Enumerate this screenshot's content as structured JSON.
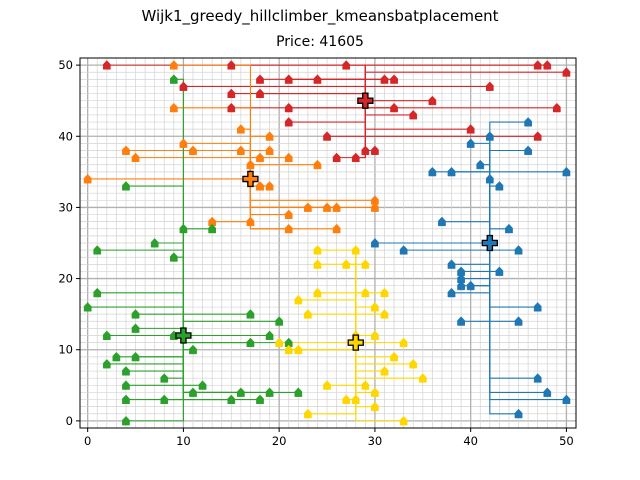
{
  "suptitle": "Wijk1_greedy_hillclimber_kmeansbatplacement",
  "title": "Price: 41605",
  "chart_data": {
    "type": "scatter",
    "title": "Price: 41605",
    "xlabel": "",
    "ylabel": "",
    "xlim": [
      -0.8,
      51
    ],
    "ylim": [
      -1,
      51
    ],
    "xticks": [
      0,
      10,
      20,
      30,
      40,
      50
    ],
    "yticks": [
      0,
      10,
      20,
      30,
      40,
      50
    ],
    "grid": true,
    "series": [
      {
        "color": "#d62728",
        "battery": [
          29,
          45
        ],
        "houses": [
          [
            2,
            50
          ],
          [
            10,
            47
          ],
          [
            15,
            50
          ],
          [
            15,
            46
          ],
          [
            15,
            44
          ],
          [
            18,
            48
          ],
          [
            18,
            46
          ],
          [
            21,
            48
          ],
          [
            21,
            44
          ],
          [
            21,
            42
          ],
          [
            24,
            48
          ],
          [
            27,
            50
          ],
          [
            31,
            48
          ],
          [
            32,
            48
          ],
          [
            32,
            44
          ],
          [
            34,
            43
          ],
          [
            36,
            45
          ],
          [
            42,
            47
          ],
          [
            47,
            50
          ],
          [
            48,
            50
          ],
          [
            50,
            49
          ],
          [
            49,
            44
          ],
          [
            47,
            40
          ],
          [
            40,
            41
          ],
          [
            25,
            40
          ],
          [
            29,
            38
          ],
          [
            30,
            38
          ],
          [
            26,
            37
          ],
          [
            28,
            37
          ]
        ]
      },
      {
        "color": "#1f77b4",
        "battery": [
          42,
          25
        ],
        "houses": [
          [
            30,
            25
          ],
          [
            33,
            24
          ],
          [
            38,
            22
          ],
          [
            39,
            21
          ],
          [
            39,
            20
          ],
          [
            39,
            19
          ],
          [
            38,
            18
          ],
          [
            40,
            19
          ],
          [
            43,
            21
          ],
          [
            45,
            24
          ],
          [
            44,
            27
          ],
          [
            37,
            28
          ],
          [
            42,
            34
          ],
          [
            43,
            33
          ],
          [
            41,
            36
          ],
          [
            40,
            39
          ],
          [
            42,
            40
          ],
          [
            46,
            38
          ],
          [
            46,
            42
          ],
          [
            50,
            35
          ],
          [
            36,
            35
          ],
          [
            38,
            35
          ],
          [
            47,
            16
          ],
          [
            45,
            14
          ],
          [
            39,
            14
          ],
          [
            47,
            6
          ],
          [
            48,
            4
          ],
          [
            50,
            3
          ],
          [
            45,
            1
          ]
        ]
      },
      {
        "color": "#ff7f0e",
        "battery": [
          17,
          34
        ],
        "houses": [
          [
            0,
            34
          ],
          [
            4,
            38
          ],
          [
            5,
            37
          ],
          [
            9,
            44
          ],
          [
            9,
            50
          ],
          [
            10,
            39
          ],
          [
            11,
            38
          ],
          [
            16,
            38
          ],
          [
            16,
            41
          ],
          [
            19,
            40
          ],
          [
            19,
            38
          ],
          [
            18,
            37
          ],
          [
            17,
            36
          ],
          [
            17,
            34
          ],
          [
            18,
            33
          ],
          [
            19,
            33
          ],
          [
            21,
            37
          ],
          [
            24,
            36
          ],
          [
            13,
            28
          ],
          [
            17,
            28
          ],
          [
            21,
            29
          ],
          [
            23,
            30
          ],
          [
            25,
            30
          ],
          [
            26,
            30
          ],
          [
            30,
            30
          ],
          [
            30,
            31
          ],
          [
            26,
            27
          ],
          [
            21,
            27
          ],
          [
            18,
            33
          ]
        ]
      },
      {
        "color": "#2ca02c",
        "battery": [
          10,
          12
        ],
        "houses": [
          [
            9,
            48
          ],
          [
            4,
            33
          ],
          [
            1,
            24
          ],
          [
            7,
            25
          ],
          [
            9,
            23
          ],
          [
            10,
            27
          ],
          [
            13,
            27
          ],
          [
            0,
            16
          ],
          [
            1,
            18
          ],
          [
            5,
            15
          ],
          [
            5,
            13
          ],
          [
            2,
            12
          ],
          [
            9,
            12
          ],
          [
            11,
            10
          ],
          [
            17,
            15
          ],
          [
            19,
            12
          ],
          [
            17,
            11
          ],
          [
            20,
            14
          ],
          [
            21,
            11
          ],
          [
            3,
            9
          ],
          [
            5,
            9
          ],
          [
            2,
            8
          ],
          [
            4,
            7
          ],
          [
            8,
            6
          ],
          [
            4,
            5
          ],
          [
            12,
            5
          ],
          [
            11,
            4
          ],
          [
            16,
            4
          ],
          [
            19,
            4
          ],
          [
            22,
            4
          ],
          [
            15,
            3
          ],
          [
            8,
            3
          ],
          [
            4,
            3
          ],
          [
            18,
            3
          ],
          [
            4,
            0
          ]
        ]
      },
      {
        "color": "#ffd700",
        "battery": [
          28,
          11
        ],
        "houses": [
          [
            22,
            17
          ],
          [
            24,
            18
          ],
          [
            29,
            18
          ],
          [
            31,
            18
          ],
          [
            30,
            16
          ],
          [
            31,
            15
          ],
          [
            23,
            15
          ],
          [
            24,
            24
          ],
          [
            24,
            22
          ],
          [
            27,
            22
          ],
          [
            28,
            24
          ],
          [
            29,
            22
          ],
          [
            20,
            11
          ],
          [
            21,
            10
          ],
          [
            22,
            10
          ],
          [
            28,
            12
          ],
          [
            30,
            12
          ],
          [
            33,
            11
          ],
          [
            32,
            9
          ],
          [
            34,
            8
          ],
          [
            31,
            7
          ],
          [
            35,
            6
          ],
          [
            25,
            5
          ],
          [
            29,
            5
          ],
          [
            30,
            4
          ],
          [
            27,
            3
          ],
          [
            28,
            3
          ],
          [
            30,
            2
          ],
          [
            23,
            1
          ],
          [
            33,
            0
          ]
        ]
      }
    ]
  }
}
